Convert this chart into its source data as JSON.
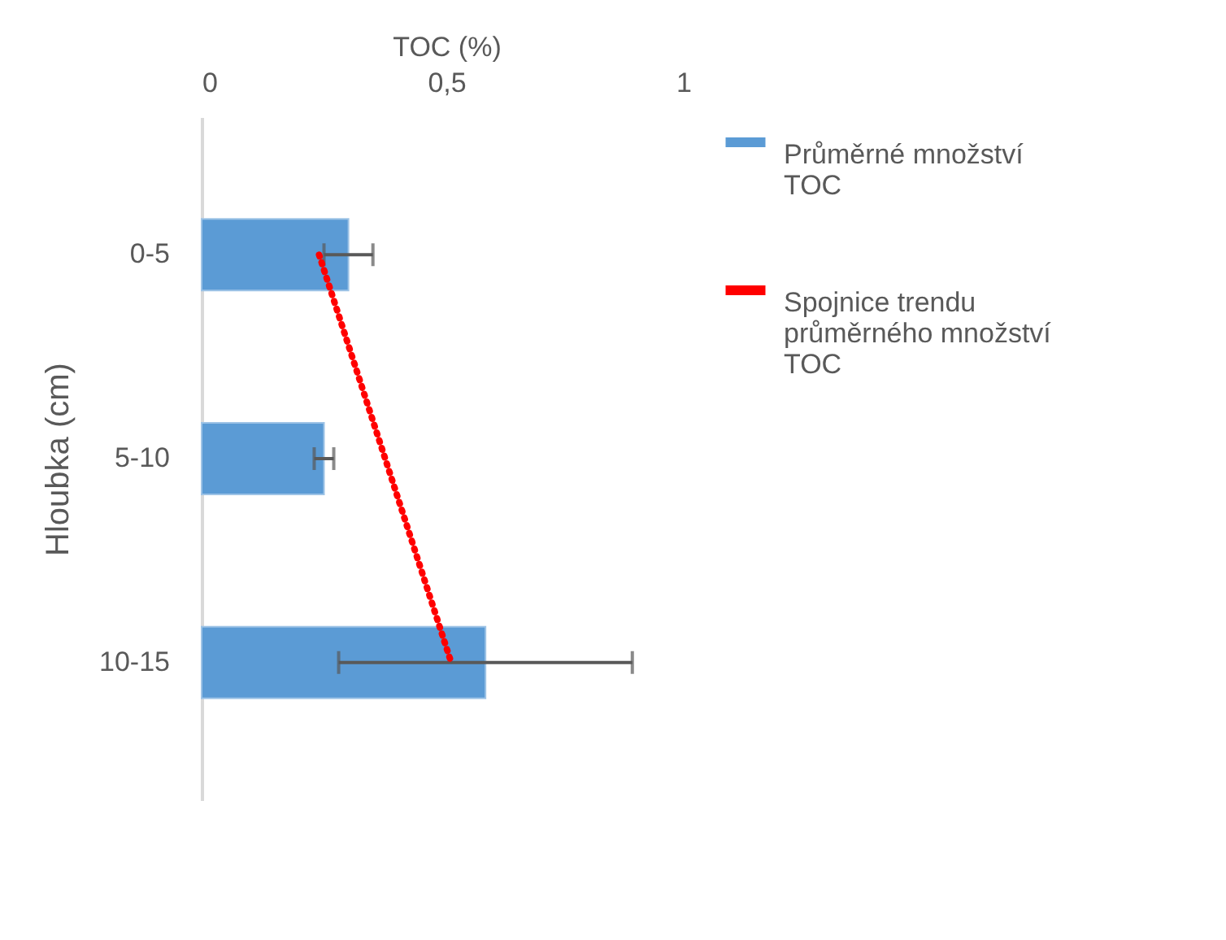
{
  "chart_data": {
    "type": "bar",
    "orientation": "horizontal",
    "xlabel": "TOC (%)",
    "ylabel": "Hloubka (cm)",
    "categories": [
      "0-5",
      "5-10",
      "10-15"
    ],
    "xlim": [
      0,
      1
    ],
    "xticks": [
      0,
      {
        "value": 0.5,
        "label": "0,5"
      },
      1
    ],
    "grid": false,
    "legend": "right",
    "series": [
      {
        "name": "Průměrné množství TOC",
        "color": "#5b9bd5",
        "values": [
          0.3,
          0.25,
          0.58
        ],
        "errors": [
          0.05,
          [
            0.23,
            0.27
          ],
          0.3
        ]
      },
      {
        "name": "Spojnice trendu průměrného množství TOC",
        "type": "line",
        "line_style": "dotted",
        "color": "#ff0000",
        "values": [
          0.24,
          0.375,
          0.51
        ]
      }
    ]
  }
}
